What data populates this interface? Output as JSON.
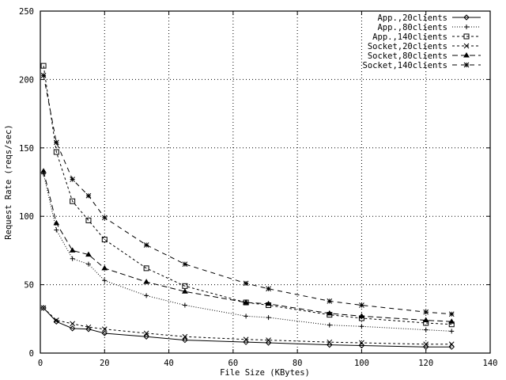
{
  "chart_data": {
    "type": "line",
    "title": "",
    "xlabel": "File Size (KBytes)",
    "ylabel": "Request Rate (reqs/sec)",
    "xlim": [
      0,
      140
    ],
    "ylim": [
      0,
      250
    ],
    "xticks": [
      0,
      20,
      40,
      60,
      80,
      100,
      120,
      140
    ],
    "yticks": [
      0,
      50,
      100,
      150,
      200,
      250
    ],
    "grid": true,
    "legend_position": "top-right",
    "x": [
      1,
      5,
      10,
      15,
      20,
      33,
      45,
      64,
      71,
      90,
      100,
      120,
      128
    ],
    "series": [
      {
        "name": "App.,20clients",
        "style": "solid",
        "marker": "diamond",
        "values": [
          33,
          23,
          18,
          17.5,
          14.5,
          12,
          9.5,
          8,
          7.5,
          6,
          5.5,
          4.5,
          4.5
        ]
      },
      {
        "name": "App.,80clients",
        "style": "dotted",
        "marker": "plus",
        "values": [
          131,
          90,
          69,
          65,
          53,
          42,
          35,
          27,
          26,
          20.5,
          19.5,
          17,
          16
        ]
      },
      {
        "name": "App.,140clients",
        "style": "short-dash",
        "marker": "square",
        "values": [
          210,
          147,
          111,
          97,
          83,
          62,
          49,
          37,
          35,
          28,
          25.5,
          22,
          21
        ]
      },
      {
        "name": "Socket,20clients",
        "style": "short-dash",
        "marker": "x",
        "values": [
          33,
          24,
          21.5,
          19,
          17.5,
          14.5,
          12,
          10,
          9.5,
          8,
          7.5,
          6.5,
          6.5
        ]
      },
      {
        "name": "Socket,80clients",
        "style": "long-dash",
        "marker": "triangle",
        "values": [
          133,
          95,
          75,
          72,
          62,
          52,
          45,
          37,
          36,
          29,
          27,
          24,
          23
        ]
      },
      {
        "name": "Socket,140clients",
        "style": "dash",
        "marker": "star",
        "values": [
          203,
          154,
          127,
          115,
          99,
          79,
          65,
          51,
          47,
          38,
          35,
          30,
          28.5
        ]
      }
    ]
  }
}
